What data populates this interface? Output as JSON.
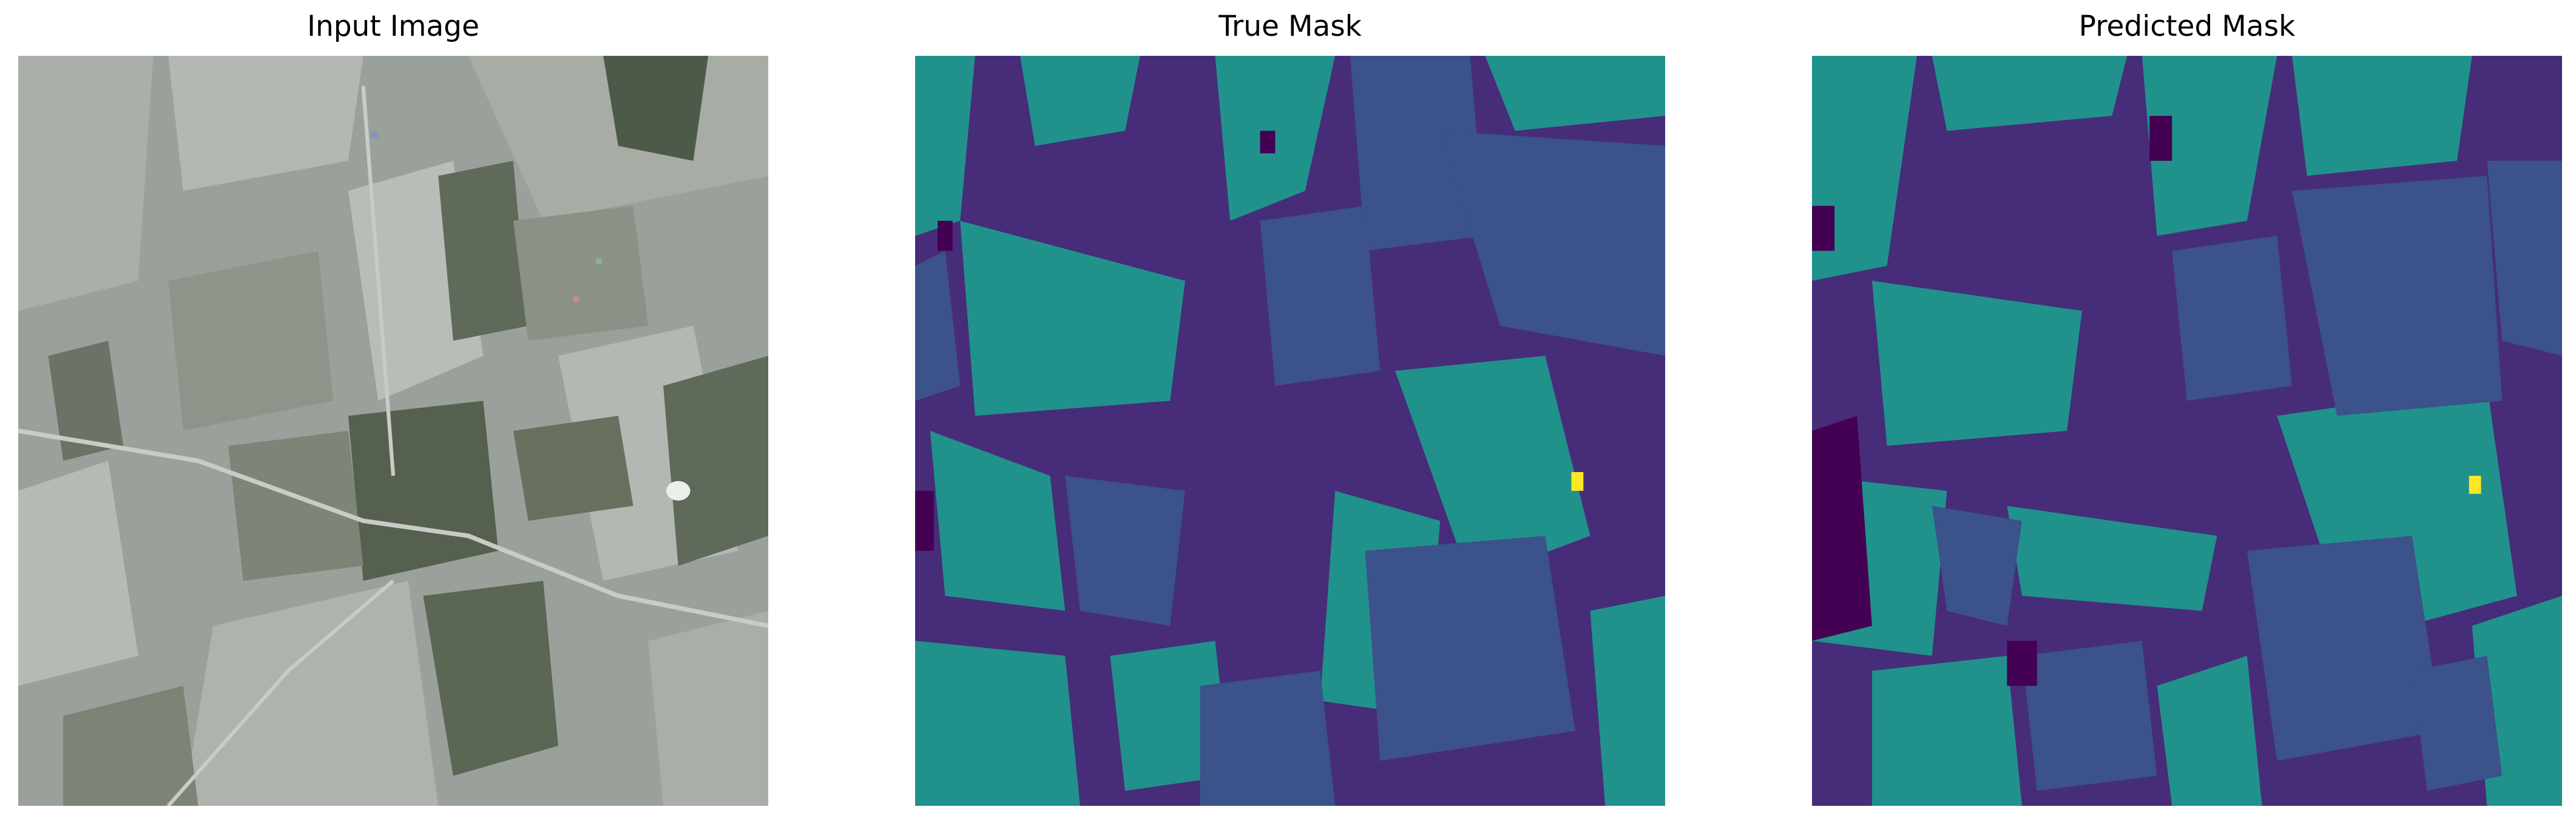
{
  "panels": [
    {
      "title": "Input Image",
      "kind": "satellite-photo"
    },
    {
      "title": "True Mask",
      "kind": "segmentation-mask"
    },
    {
      "title": "Predicted Mask",
      "kind": "segmentation-mask"
    }
  ],
  "mask_palette": {
    "class_0": "#440154",
    "class_1": "#472c7a",
    "class_2": "#3b528b",
    "class_3": "#21918c",
    "class_4": "#fde725"
  },
  "photo_palette": {
    "base": "#9aa19b",
    "light_field": "#b9bdb8",
    "dark_field": "#56604f",
    "mid_field": "#7d8579",
    "bright_spot": "#ecefec",
    "road": "#c9ccc6"
  }
}
